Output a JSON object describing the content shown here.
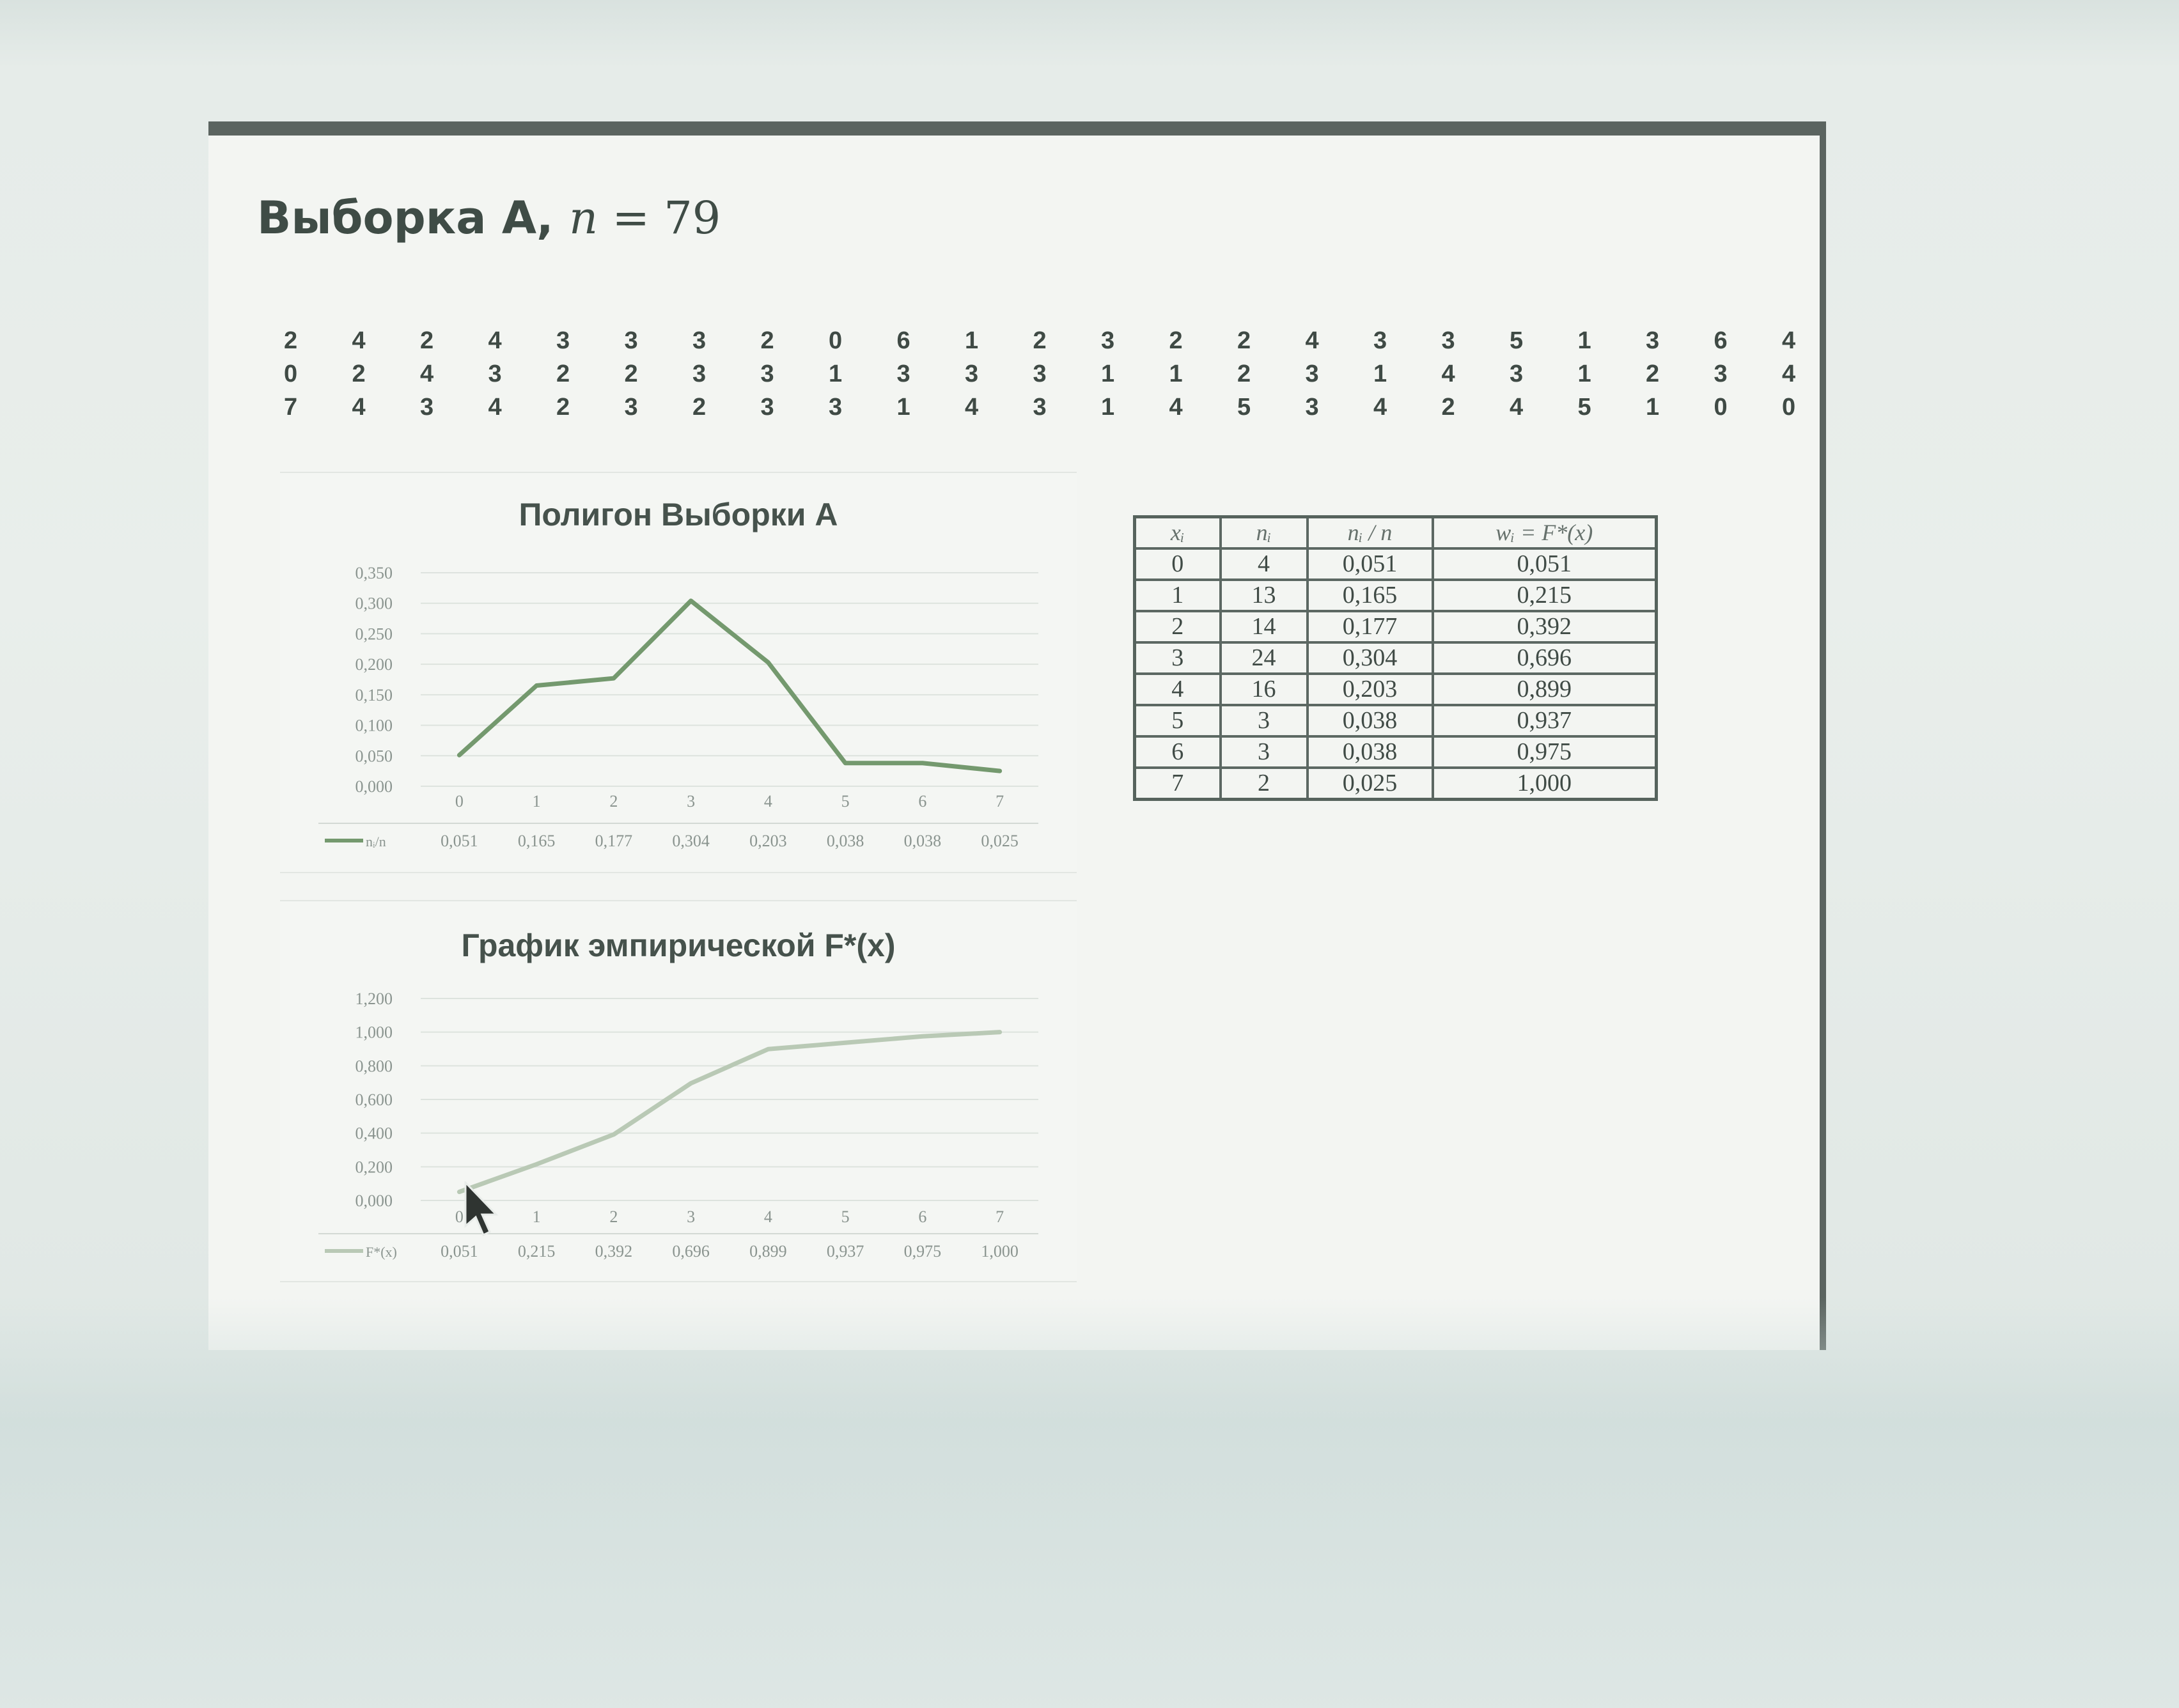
{
  "slide": {
    "title_text": "Выборка А, ",
    "title_math_var": "n",
    "title_math_rest": " = 79"
  },
  "sample_rows": [
    [
      "2",
      "4",
      "2",
      "4",
      "3",
      "3",
      "3",
      "2",
      "0",
      "6",
      "1",
      "2",
      "3",
      "2",
      "2",
      "4",
      "3",
      "3",
      "5",
      "1",
      "3",
      "6",
      "4"
    ],
    [
      "0",
      "2",
      "4",
      "3",
      "2",
      "2",
      "3",
      "3",
      "1",
      "3",
      "3",
      "3",
      "1",
      "1",
      "2",
      "3",
      "1",
      "4",
      "3",
      "1",
      "2",
      "3",
      "4"
    ],
    [
      "7",
      "4",
      "3",
      "4",
      "2",
      "3",
      "2",
      "3",
      "3",
      "1",
      "4",
      "3",
      "1",
      "4",
      "5",
      "3",
      "4",
      "2",
      "4",
      "5",
      "1",
      "0",
      "0"
    ]
  ],
  "table": {
    "headers": [
      "xᵢ",
      "nᵢ",
      "nᵢ / n",
      "wᵢ = F*(x)"
    ],
    "rows": [
      [
        "0",
        "4",
        "0,051",
        "0,051"
      ],
      [
        "1",
        "13",
        "0,165",
        "0,215"
      ],
      [
        "2",
        "14",
        "0,177",
        "0,392"
      ],
      [
        "3",
        "24",
        "0,304",
        "0,696"
      ],
      [
        "4",
        "16",
        "0,203",
        "0,899"
      ],
      [
        "5",
        "3",
        "0,038",
        "0,937"
      ],
      [
        "6",
        "3",
        "0,038",
        "0,975"
      ],
      [
        "7",
        "2",
        "0,025",
        "1,000"
      ]
    ]
  },
  "colors": {
    "polygon_line": "#74996e",
    "ecdf_line": "#b9c9b5",
    "grid": "#dde3de"
  },
  "chart_data": [
    {
      "type": "line",
      "title": "Полигон Выборки А",
      "categories": [
        "0",
        "1",
        "2",
        "3",
        "4",
        "5",
        "6",
        "7"
      ],
      "series": [
        {
          "name": "nᵢ/n",
          "values": [
            0.051,
            0.165,
            0.177,
            0.304,
            0.203,
            0.038,
            0.038,
            0.025
          ]
        }
      ],
      "value_labels": [
        "0,051",
        "0,165",
        "0,177",
        "0,304",
        "0,203",
        "0,038",
        "0,038",
        "0,025"
      ],
      "yticks": [
        "0,000",
        "0,050",
        "0,100",
        "0,150",
        "0,200",
        "0,250",
        "0,300",
        "0,350"
      ],
      "ylim": [
        0,
        0.35
      ],
      "grid": true,
      "legend": "data-table"
    },
    {
      "type": "line",
      "title": "График эмпирической F*(x)",
      "categories": [
        "0",
        "1",
        "2",
        "3",
        "4",
        "5",
        "6",
        "7"
      ],
      "series": [
        {
          "name": "F*(x)",
          "values": [
            0.051,
            0.215,
            0.392,
            0.696,
            0.899,
            0.937,
            0.975,
            1.0
          ]
        }
      ],
      "value_labels": [
        "0,051",
        "0,215",
        "0,392",
        "0,696",
        "0,899",
        "0,937",
        "0,975",
        "1,000"
      ],
      "yticks": [
        "0,000",
        "0,200",
        "0,400",
        "0,600",
        "0,800",
        "1,000",
        "1,200"
      ],
      "ylim": [
        0,
        1.2
      ],
      "grid": true,
      "legend": "data-table"
    }
  ]
}
